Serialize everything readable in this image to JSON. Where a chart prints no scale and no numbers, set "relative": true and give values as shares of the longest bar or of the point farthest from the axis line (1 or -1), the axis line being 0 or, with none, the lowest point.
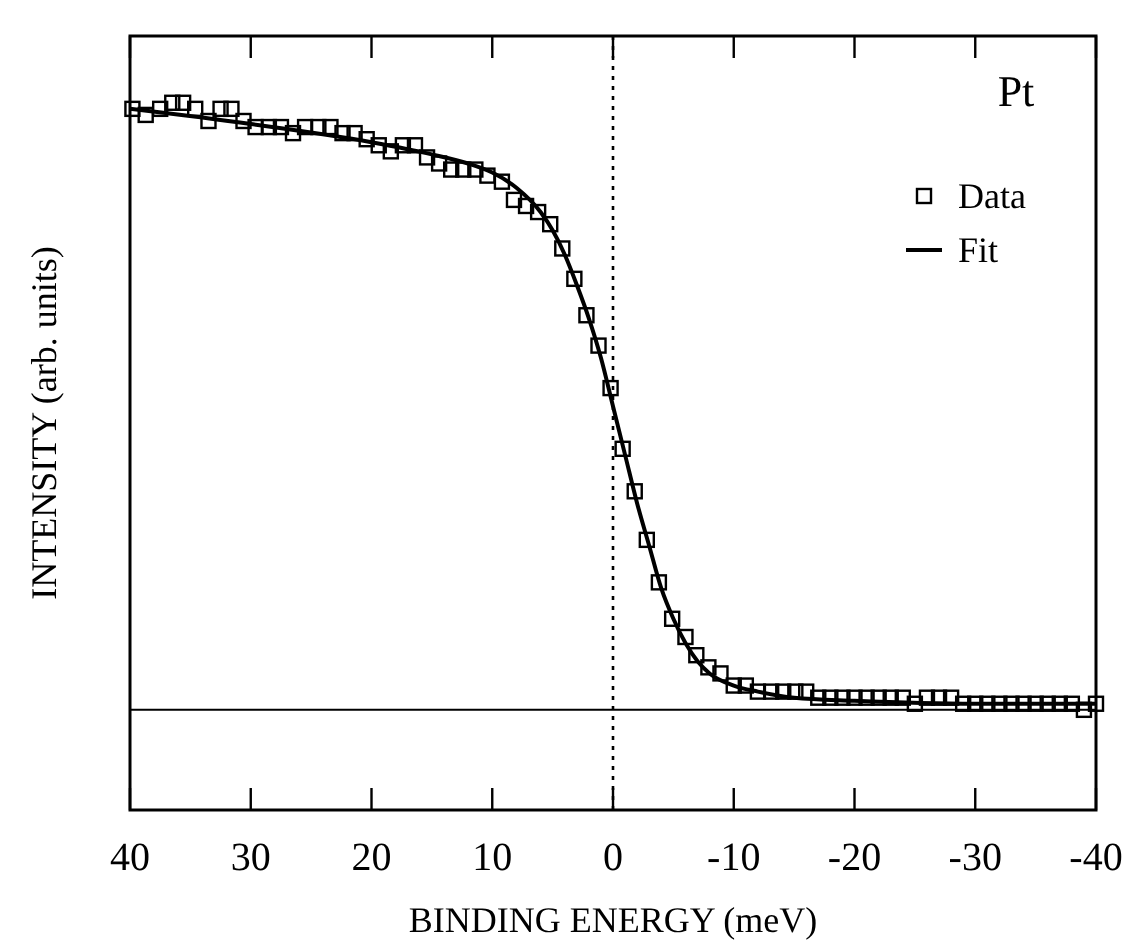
{
  "chart_data": {
    "type": "scatter",
    "xlabel": "BINDING ENERGY (meV)",
    "ylabel": "INTENSITY (arb. units)",
    "legend_title": "Pt",
    "legend": "top right",
    "relative": true,
    "xlim": [
      40,
      -40
    ],
    "xticks": [
      40,
      30,
      20,
      10,
      0,
      -10,
      -20,
      -30,
      -40
    ],
    "ref_lines": [
      {
        "axis": "y",
        "value": 0,
        "line_style": "solid"
      },
      {
        "axis": "x",
        "value": 0,
        "line_style": "dotted"
      }
    ],
    "series": [
      {
        "name": "Data",
        "type": "scatter",
        "marker": "square",
        "color": "#000000",
        "x": [
          39.8,
          38.7,
          37.5,
          36.5,
          35.6,
          34.6,
          33.5,
          32.5,
          31.6,
          30.6,
          29.6,
          28.5,
          27.5,
          26.5,
          25.5,
          24.4,
          23.4,
          22.4,
          21.4,
          20.4,
          19.4,
          18.4,
          17.4,
          16.4,
          15.4,
          14.4,
          13.4,
          12.4,
          11.4,
          10.4,
          9.2,
          8.2,
          7.2,
          6.2,
          5.2,
          4.2,
          3.2,
          2.2,
          1.2,
          0.2,
          -0.8,
          -1.8,
          -2.8,
          -3.8,
          -4.9,
          -6.0,
          -6.9,
          -7.9,
          -8.9,
          -10.0,
          -11.0,
          -12.0,
          -13.1,
          -14.1,
          -15.1,
          -16,
          -17,
          -18,
          -19,
          -20,
          -21,
          -22,
          -23,
          -24,
          -25,
          -26,
          -27,
          -28,
          -29,
          -30,
          -31,
          -32,
          -33,
          -34,
          -35,
          -36,
          -37,
          -38,
          -39,
          -40
        ],
        "values": [
          0.99,
          0.98,
          0.99,
          1.0,
          1.0,
          0.99,
          0.97,
          0.99,
          0.99,
          0.97,
          0.96,
          0.96,
          0.96,
          0.95,
          0.96,
          0.96,
          0.96,
          0.95,
          0.95,
          0.94,
          0.93,
          0.92,
          0.93,
          0.93,
          0.91,
          0.9,
          0.89,
          0.89,
          0.89,
          0.88,
          0.87,
          0.84,
          0.83,
          0.82,
          0.8,
          0.76,
          0.71,
          0.65,
          0.6,
          0.53,
          0.43,
          0.36,
          0.28,
          0.21,
          0.15,
          0.12,
          0.09,
          0.07,
          0.06,
          0.04,
          0.04,
          0.03,
          0.03,
          0.03,
          0.03,
          0.03,
          0.02,
          0.02,
          0.02,
          0.02,
          0.02,
          0.02,
          0.02,
          0.02,
          0.01,
          0.02,
          0.02,
          0.02,
          0.01,
          0.01,
          0.01,
          0.01,
          0.01,
          0.01,
          0.01,
          0.01,
          0.01,
          0.01,
          0.0,
          0.01
        ]
      },
      {
        "name": "Fit",
        "type": "line",
        "marker": "none",
        "line_style": "solid",
        "color": "#000000",
        "x": [
          40,
          30,
          20,
          15,
          12,
          10,
          8,
          6,
          5,
          4,
          3,
          2,
          1,
          0,
          -1,
          -2,
          -3,
          -4,
          -5,
          -6,
          -7,
          -8,
          -10,
          -12,
          -15,
          -20,
          -30,
          -40
        ],
        "values": [
          0.99,
          0.965,
          0.935,
          0.915,
          0.9,
          0.885,
          0.86,
          0.82,
          0.79,
          0.75,
          0.7,
          0.645,
          0.58,
          0.5,
          0.42,
          0.34,
          0.27,
          0.2,
          0.15,
          0.11,
          0.08,
          0.06,
          0.04,
          0.03,
          0.02,
          0.015,
          0.01,
          0.01
        ]
      }
    ]
  }
}
